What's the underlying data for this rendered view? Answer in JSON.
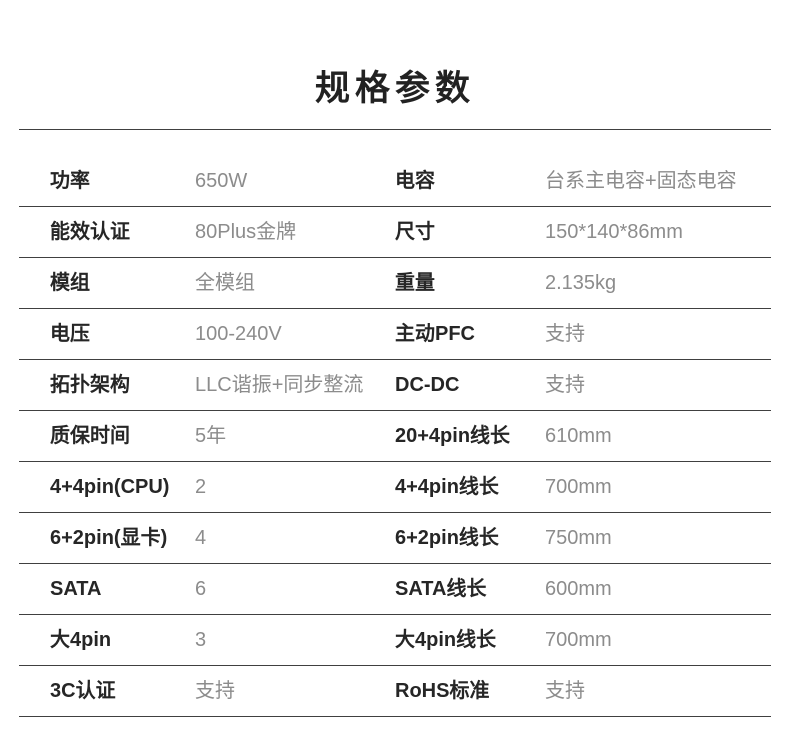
{
  "page": {
    "title": "规格参数"
  },
  "colors": {
    "background": "#ffffff",
    "title_color": "#222222",
    "label_color": "#262626",
    "value_color": "#8c8c8c",
    "line_color": "#404040"
  },
  "table": {
    "rows": [
      {
        "left_label": "功率",
        "left_value": "650W",
        "right_label": "电容",
        "right_value": "台系主电容+固态电容"
      },
      {
        "left_label": "能效认证",
        "left_value": "80Plus金牌",
        "right_label": "尺寸",
        "right_value": "150*140*86mm"
      },
      {
        "left_label": "模组",
        "left_value": "全模组",
        "right_label": "重量",
        "right_value": "2.135kg"
      },
      {
        "left_label": "电压",
        "left_value": "100-240V",
        "right_label": "主动PFC",
        "right_value": "支持"
      },
      {
        "left_label": "拓扑架构",
        "left_value": "LLC谐振+同步整流",
        "right_label": "DC-DC",
        "right_value": "支持"
      },
      {
        "left_label": "质保时间",
        "left_value": "5年",
        "right_label": "20+4pin线长",
        "right_value": "610mm"
      },
      {
        "left_label": "4+4pin(CPU)",
        "left_value": "2",
        "right_label": "4+4pin线长",
        "right_value": "700mm"
      },
      {
        "left_label": "6+2pin(显卡)",
        "left_value": "4",
        "right_label": "6+2pin线长",
        "right_value": "750mm"
      },
      {
        "left_label": "SATA",
        "left_value": "6",
        "right_label": "SATA线长",
        "right_value": "600mm"
      },
      {
        "left_label": "大4pin",
        "left_value": "3",
        "right_label": "大4pin线长",
        "right_value": "700mm"
      },
      {
        "left_label": "3C认证",
        "left_value": "支持",
        "right_label": "RoHS标准",
        "right_value": "支持"
      }
    ]
  }
}
